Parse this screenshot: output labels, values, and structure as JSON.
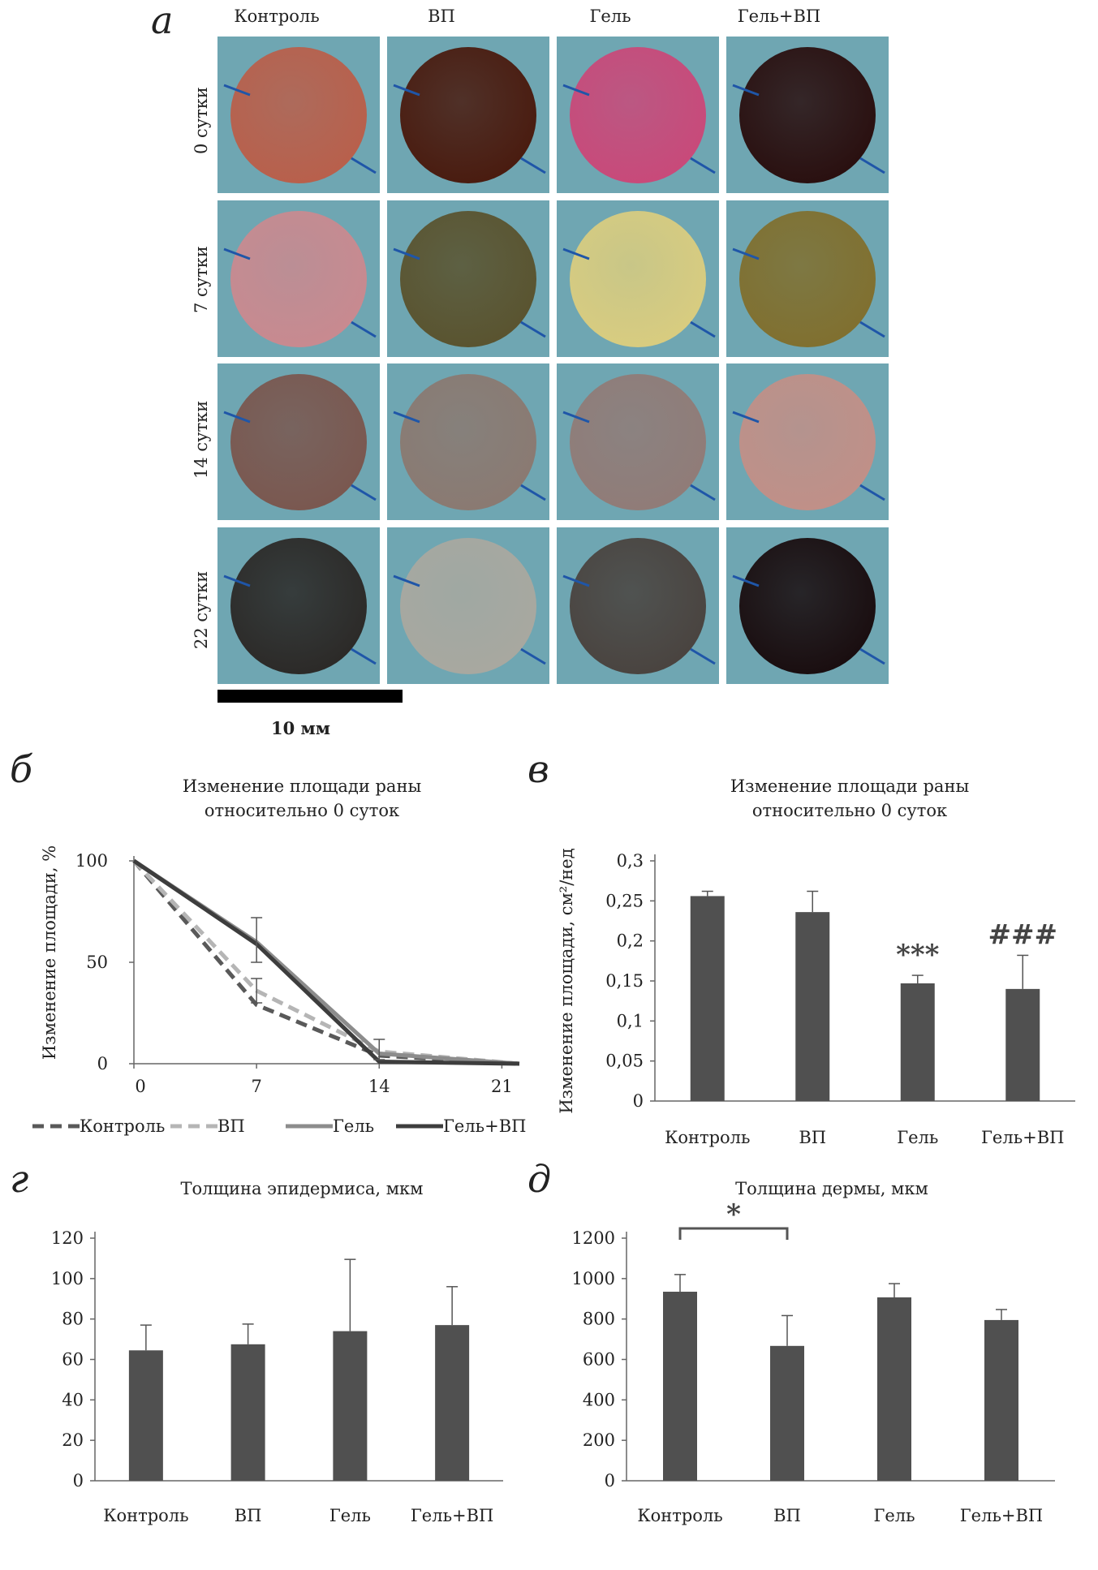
{
  "panel_a": {
    "letter": "а",
    "columns": [
      "Контроль",
      "ВП",
      "Гель",
      "Гель+ВП"
    ],
    "rows": [
      "0 сутки",
      "7 сутки",
      "14 сутки",
      "22 сутки"
    ],
    "scale_label": "10 мм",
    "wound_colors": [
      [
        "#b8604c",
        "#4a1c10",
        "#c84a7a",
        "#2a1010"
      ],
      [
        "#c88a90",
        "#5a5430",
        "#d8cc80",
        "#807030"
      ],
      [
        "#7a5850",
        "#8a7a72",
        "#907c78",
        "#c09088"
      ],
      [
        "#2c2a28",
        "#a8a8a0",
        "#4a4440",
        "#1a0e10"
      ]
    ],
    "background_color": "#5c9aa8"
  },
  "chart_data": [
    {
      "letter": "б",
      "type": "line",
      "title": [
        "Изменение площади раны",
        "относительно 0 суток"
      ],
      "xlabel": "",
      "ylabel": "Изменение площади, %",
      "x": [
        0,
        7,
        14,
        21
      ],
      "xticks": [
        "0",
        "7",
        "14",
        "21"
      ],
      "yticks": [
        "0",
        "50",
        "100"
      ],
      "ylim": [
        0,
        100
      ],
      "xlim": [
        0,
        22
      ],
      "series": [
        {
          "name": "Контроль",
          "x": [
            0,
            7,
            14,
            22
          ],
          "values": [
            100,
            29,
            4,
            0
          ],
          "color": "#595959",
          "dashed": true
        },
        {
          "name": "ВП",
          "x": [
            0,
            7,
            14,
            22
          ],
          "values": [
            100,
            36,
            6,
            0
          ],
          "color": "#b5b5b5",
          "dashed": true
        },
        {
          "name": "Гель",
          "x": [
            0,
            7,
            14,
            22
          ],
          "values": [
            100,
            60,
            5,
            0
          ],
          "color": "#8c8c8c",
          "dashed": false
        },
        {
          "name": "Гель+ВП",
          "x": [
            0,
            7,
            14,
            22
          ],
          "values": [
            100,
            59,
            1,
            0
          ],
          "color": "#3d3d3d",
          "dashed": false
        }
      ],
      "errors": [
        {
          "x": 7,
          "low": 50,
          "high": 72
        },
        {
          "x": 7,
          "low": 30,
          "high": 42
        },
        {
          "x": 14,
          "low": 2,
          "high": 12
        }
      ],
      "legend_position": "bottom"
    },
    {
      "letter": "в",
      "type": "bar",
      "title": [
        "Изменение площади раны",
        "относительно 0 суток"
      ],
      "xlabel": "",
      "ylabel": "Изменение площади, см²/нед",
      "categories": [
        "Контроль",
        "ВП",
        "Гель",
        "Гель+ВП"
      ],
      "values": [
        0.256,
        0.236,
        0.147,
        0.14
      ],
      "errors": [
        0.006,
        0.026,
        0.01,
        0.042
      ],
      "yticks": [
        "0",
        "0,05",
        "0,1",
        "0,15",
        "0,2",
        "0,25",
        "0,3"
      ],
      "ylim": [
        0,
        0.3
      ],
      "annotations": [
        {
          "category": 2,
          "text": "***"
        },
        {
          "category": 3,
          "text": "###"
        }
      ]
    },
    {
      "letter": "г",
      "type": "bar",
      "title": "Толщина эпидермиса, мкм",
      "xlabel": "",
      "ylabel": "",
      "categories": [
        "Контроль",
        "ВП",
        "Гель",
        "Гель+ВП"
      ],
      "values": [
        64.5,
        67.5,
        74,
        77
      ],
      "errors": [
        12.5,
        10,
        35.5,
        19
      ],
      "yticks": [
        "0",
        "20",
        "40",
        "60",
        "80",
        "100",
        "120"
      ],
      "ylim": [
        0,
        120
      ],
      "annotations": []
    },
    {
      "letter": "д",
      "type": "bar",
      "title": "Толщина дермы, мкм",
      "xlabel": "",
      "ylabel": "",
      "categories": [
        "Контроль",
        "ВП",
        "Гель",
        "Гель+ВП"
      ],
      "values": [
        935,
        667,
        907,
        795
      ],
      "errors": [
        85,
        150,
        68,
        52
      ],
      "yticks": [
        "0",
        "200",
        "400",
        "600",
        "800",
        "1000",
        "1200"
      ],
      "ylim": [
        0,
        1200
      ],
      "significance": {
        "from": 0,
        "to": 1,
        "text": "*"
      },
      "annotations": []
    }
  ],
  "colors": {
    "bar": "#505050",
    "axis": "#666666",
    "text": "#222222"
  }
}
